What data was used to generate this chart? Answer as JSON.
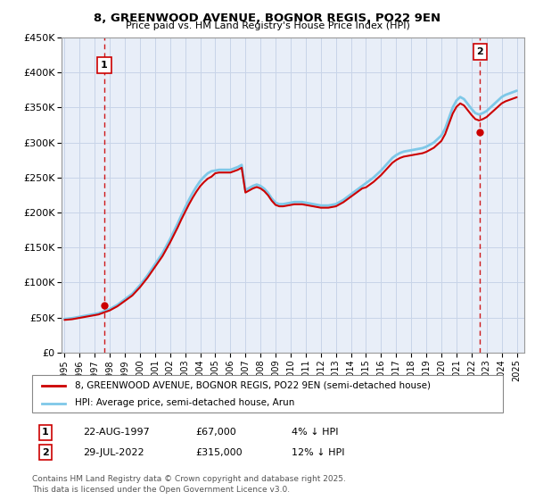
{
  "title": "8, GREENWOOD AVENUE, BOGNOR REGIS, PO22 9EN",
  "subtitle": "Price paid vs. HM Land Registry's House Price Index (HPI)",
  "footer": "Contains HM Land Registry data © Crown copyright and database right 2025.\nThis data is licensed under the Open Government Licence v3.0.",
  "legend_line1": "8, GREENWOOD AVENUE, BOGNOR REGIS, PO22 9EN (semi-detached house)",
  "legend_line2": "HPI: Average price, semi-detached house, Arun",
  "transaction1_label": "1",
  "transaction1_date": "22-AUG-1997",
  "transaction1_price": "£67,000",
  "transaction1_note": "4% ↓ HPI",
  "transaction2_label": "2",
  "transaction2_date": "29-JUL-2022",
  "transaction2_price": "£315,000",
  "transaction2_note": "12% ↓ HPI",
  "hpi_color": "#7ec8e8",
  "price_color": "#cc0000",
  "vline_color": "#cc0000",
  "plot_bg_color": "#e8eef8",
  "grid_color": "#c8d4e8",
  "ylim": [
    0,
    450000
  ],
  "yticks": [
    0,
    50000,
    100000,
    150000,
    200000,
    250000,
    300000,
    350000,
    400000,
    450000
  ],
  "ytick_labels": [
    "£0",
    "£50K",
    "£100K",
    "£150K",
    "£200K",
    "£250K",
    "£300K",
    "£350K",
    "£400K",
    "£450K"
  ],
  "xlim_start": 1994.8,
  "xlim_end": 2025.5,
  "transaction1_x": 1997.64,
  "transaction1_y": 67000,
  "transaction2_x": 2022.57,
  "transaction2_y": 315000,
  "hpi_years": [
    1995,
    1995.25,
    1995.5,
    1995.75,
    1996,
    1996.25,
    1996.5,
    1996.75,
    1997,
    1997.25,
    1997.5,
    1997.75,
    1998,
    1998.25,
    1998.5,
    1998.75,
    1999,
    1999.25,
    1999.5,
    1999.75,
    2000,
    2000.25,
    2000.5,
    2000.75,
    2001,
    2001.25,
    2001.5,
    2001.75,
    2002,
    2002.25,
    2002.5,
    2002.75,
    2003,
    2003.25,
    2003.5,
    2003.75,
    2004,
    2004.25,
    2004.5,
    2004.75,
    2005,
    2005.25,
    2005.5,
    2005.75,
    2006,
    2006.25,
    2006.5,
    2006.75,
    2007,
    2007.25,
    2007.5,
    2007.75,
    2008,
    2008.25,
    2008.5,
    2008.75,
    2009,
    2009.25,
    2009.5,
    2009.75,
    2010,
    2010.25,
    2010.5,
    2010.75,
    2011,
    2011.25,
    2011.5,
    2011.75,
    2012,
    2012.25,
    2012.5,
    2012.75,
    2013,
    2013.25,
    2013.5,
    2013.75,
    2014,
    2014.25,
    2014.5,
    2014.75,
    2015,
    2015.25,
    2015.5,
    2015.75,
    2016,
    2016.25,
    2016.5,
    2016.75,
    2017,
    2017.25,
    2017.5,
    2017.75,
    2018,
    2018.25,
    2018.5,
    2018.75,
    2019,
    2019.25,
    2019.5,
    2019.75,
    2020,
    2020.25,
    2020.5,
    2020.75,
    2021,
    2021.25,
    2021.5,
    2021.75,
    2022,
    2022.25,
    2022.5,
    2022.75,
    2023,
    2023.25,
    2023.5,
    2023.75,
    2024,
    2024.25,
    2024.5,
    2024.75,
    2025
  ],
  "hpi_values": [
    48000,
    48500,
    49000,
    50000,
    51000,
    52000,
    53000,
    54000,
    55000,
    56000,
    58000,
    60000,
    62000,
    65000,
    68000,
    72000,
    76000,
    80000,
    84000,
    90000,
    96000,
    103000,
    110000,
    118000,
    126000,
    134000,
    142000,
    152000,
    162000,
    173000,
    184000,
    196000,
    207000,
    218000,
    228000,
    237000,
    245000,
    251000,
    256000,
    259000,
    260000,
    261000,
    261000,
    261000,
    261000,
    263000,
    265000,
    268000,
    232000,
    235000,
    238000,
    240000,
    238000,
    234000,
    228000,
    220000,
    214000,
    212000,
    212000,
    213000,
    214000,
    215000,
    215000,
    215000,
    214000,
    213000,
    212000,
    211000,
    210000,
    210000,
    210000,
    211000,
    212000,
    215000,
    218000,
    222000,
    226000,
    230000,
    234000,
    238000,
    242000,
    246000,
    250000,
    255000,
    260000,
    266000,
    272000,
    278000,
    282000,
    285000,
    287000,
    288000,
    289000,
    290000,
    291000,
    292000,
    294000,
    297000,
    300000,
    305000,
    310000,
    320000,
    335000,
    350000,
    360000,
    365000,
    362000,
    355000,
    348000,
    342000,
    340000,
    342000,
    345000,
    350000,
    355000,
    360000,
    365000,
    368000,
    370000,
    372000,
    374000
  ]
}
